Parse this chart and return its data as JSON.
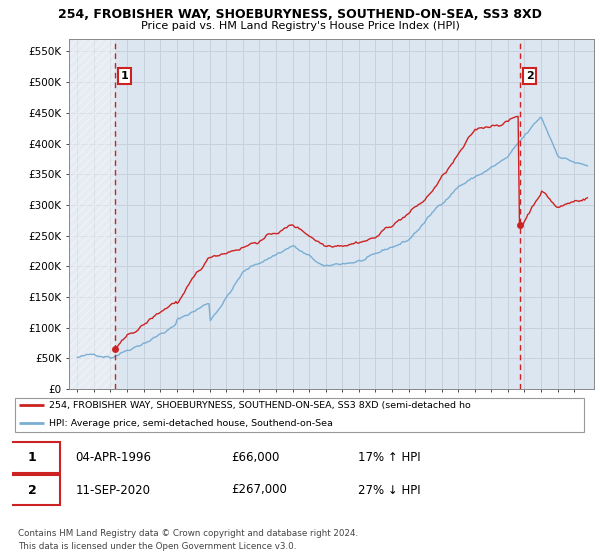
{
  "title": "254, FROBISHER WAY, SHOEBURYNESS, SOUTHEND-ON-SEA, SS3 8XD",
  "subtitle": "Price paid vs. HM Land Registry's House Price Index (HPI)",
  "ylabel_ticks": [
    "£0",
    "£50K",
    "£100K",
    "£150K",
    "£200K",
    "£250K",
    "£300K",
    "£350K",
    "£400K",
    "£450K",
    "£500K",
    "£550K"
  ],
  "ytick_values": [
    0,
    50000,
    100000,
    150000,
    200000,
    250000,
    300000,
    350000,
    400000,
    450000,
    500000,
    550000
  ],
  "ylim": [
    0,
    570000
  ],
  "legend_line1": "254, FROBISHER WAY, SHOEBURYNESS, SOUTHEND-ON-SEA, SS3 8XD (semi-detached ho",
  "legend_line2": "HPI: Average price, semi-detached house, Southend-on-Sea",
  "annotation1_date": "04-APR-1996",
  "annotation1_price": "£66,000",
  "annotation1_hpi": "17% ↑ HPI",
  "annotation2_date": "11-SEP-2020",
  "annotation2_price": "£267,000",
  "annotation2_hpi": "27% ↓ HPI",
  "footer1": "Contains HM Land Registry data © Crown copyright and database right 2024.",
  "footer2": "This data is licensed under the Open Government Licence v3.0.",
  "sale1_x": 1996.27,
  "sale1_y": 66000,
  "sale2_x": 2020.71,
  "sale2_y": 267000,
  "vline1_x": 1996.27,
  "vline2_x": 2020.71,
  "hpi_color": "#7aaed4",
  "price_color": "#cc2222",
  "vline_color": "#cc2222",
  "hatch_color": "#d8e0ec",
  "grid_color": "#c8d0dc",
  "plot_bg": "#dce6f0",
  "xlim_left": 1993.5,
  "xlim_right": 2025.2
}
